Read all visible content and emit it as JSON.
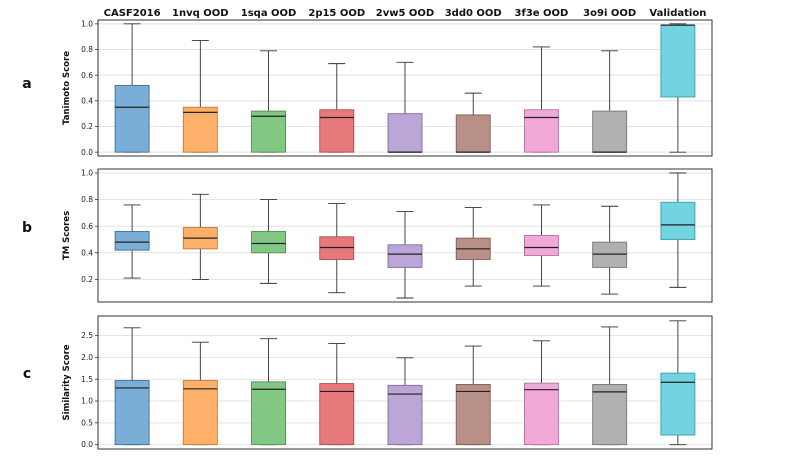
{
  "chart_data": {
    "type": "box",
    "categories": [
      "CASF2016",
      "1nvq OOD",
      "1sqa OOD",
      "2p15 OOD",
      "2vw5 OOD",
      "3dd0 OOD",
      "3f3e OOD",
      "3o9i OOD",
      "Validation"
    ],
    "colors": [
      "#7aaed6",
      "#fdb069",
      "#82c884",
      "#e8797b",
      "#bca6d8",
      "#b99088",
      "#f1a9da",
      "#b0b0b0",
      "#72d4e0"
    ],
    "edge_colors": [
      "#3f6f96",
      "#c27a33",
      "#4e8f50",
      "#a94a4c",
      "#806b9e",
      "#7d5e57",
      "#b86ea0",
      "#777777",
      "#3aa0ad"
    ],
    "panels": [
      {
        "letter": "a",
        "ylabel": "Tanimoto Score",
        "ylim": [
          -0.03,
          1.03
        ],
        "yticks": [
          0.0,
          0.2,
          0.4,
          0.6,
          0.8,
          1.0
        ],
        "tick_labels": [
          "0.0",
          "0.2",
          "0.4",
          "0.6",
          "0.8",
          "1.0"
        ],
        "boxes": [
          {
            "min": 0.0,
            "q1": 0.0,
            "median": 0.35,
            "q3": 0.52,
            "max": 1.0
          },
          {
            "min": 0.0,
            "q1": 0.0,
            "median": 0.31,
            "q3": 0.35,
            "max": 0.87
          },
          {
            "min": 0.0,
            "q1": 0.0,
            "median": 0.28,
            "q3": 0.32,
            "max": 0.79
          },
          {
            "min": 0.0,
            "q1": 0.0,
            "median": 0.27,
            "q3": 0.33,
            "max": 0.69
          },
          {
            "min": 0.0,
            "q1": 0.0,
            "median": 0.0,
            "q3": 0.3,
            "max": 0.7
          },
          {
            "min": 0.0,
            "q1": 0.0,
            "median": 0.0,
            "q3": 0.29,
            "max": 0.46
          },
          {
            "min": 0.0,
            "q1": 0.0,
            "median": 0.27,
            "q3": 0.33,
            "max": 0.82
          },
          {
            "min": 0.0,
            "q1": 0.0,
            "median": 0.0,
            "q3": 0.32,
            "max": 0.79
          },
          {
            "min": 0.0,
            "q1": 0.43,
            "median": 0.99,
            "q3": 0.99,
            "max": 1.0
          }
        ]
      },
      {
        "letter": "b",
        "ylabel": "TM Scores",
        "ylim": [
          0.03,
          1.03
        ],
        "yticks": [
          0.2,
          0.4,
          0.6,
          0.8,
          1.0
        ],
        "tick_labels": [
          "0.2",
          "0.4",
          "0.6",
          "0.8",
          "1.0"
        ],
        "boxes": [
          {
            "min": 0.21,
            "q1": 0.42,
            "median": 0.48,
            "q3": 0.56,
            "max": 0.76
          },
          {
            "min": 0.2,
            "q1": 0.43,
            "median": 0.51,
            "q3": 0.59,
            "max": 0.84
          },
          {
            "min": 0.17,
            "q1": 0.4,
            "median": 0.47,
            "q3": 0.56,
            "max": 0.8
          },
          {
            "min": 0.1,
            "q1": 0.35,
            "median": 0.44,
            "q3": 0.52,
            "max": 0.77
          },
          {
            "min": 0.06,
            "q1": 0.29,
            "median": 0.39,
            "q3": 0.46,
            "max": 0.71
          },
          {
            "min": 0.15,
            "q1": 0.35,
            "median": 0.43,
            "q3": 0.51,
            "max": 0.74
          },
          {
            "min": 0.15,
            "q1": 0.38,
            "median": 0.44,
            "q3": 0.53,
            "max": 0.76
          },
          {
            "min": 0.09,
            "q1": 0.29,
            "median": 0.39,
            "q3": 0.48,
            "max": 0.75
          },
          {
            "min": 0.14,
            "q1": 0.5,
            "median": 0.61,
            "q3": 0.78,
            "max": 1.0
          }
        ]
      },
      {
        "letter": "c",
        "ylabel": "Similarity Score",
        "ylim": [
          -0.1,
          2.95
        ],
        "yticks": [
          0.0,
          0.5,
          1.0,
          1.5,
          2.0,
          2.5
        ],
        "tick_labels": [
          "0.0",
          "0.5",
          "1.0",
          "1.5",
          "2.0",
          "2.5"
        ],
        "boxes": [
          {
            "min": 0.0,
            "q1": 0.0,
            "median": 1.3,
            "q3": 1.47,
            "max": 2.68
          },
          {
            "min": 0.0,
            "q1": 0.0,
            "median": 1.28,
            "q3": 1.47,
            "max": 2.35
          },
          {
            "min": 0.0,
            "q1": 0.0,
            "median": 1.27,
            "q3": 1.44,
            "max": 2.43
          },
          {
            "min": 0.0,
            "q1": 0.0,
            "median": 1.22,
            "q3": 1.4,
            "max": 2.32
          },
          {
            "min": 0.0,
            "q1": 0.0,
            "median": 1.16,
            "q3": 1.36,
            "max": 1.99
          },
          {
            "min": 0.0,
            "q1": 0.0,
            "median": 1.22,
            "q3": 1.38,
            "max": 2.26
          },
          {
            "min": 0.0,
            "q1": 0.0,
            "median": 1.26,
            "q3": 1.41,
            "max": 2.38
          },
          {
            "min": 0.0,
            "q1": 0.0,
            "median": 1.21,
            "q3": 1.38,
            "max": 2.7
          },
          {
            "min": 0.0,
            "q1": 0.22,
            "median": 1.43,
            "q3": 1.64,
            "max": 2.84
          }
        ]
      }
    ]
  }
}
